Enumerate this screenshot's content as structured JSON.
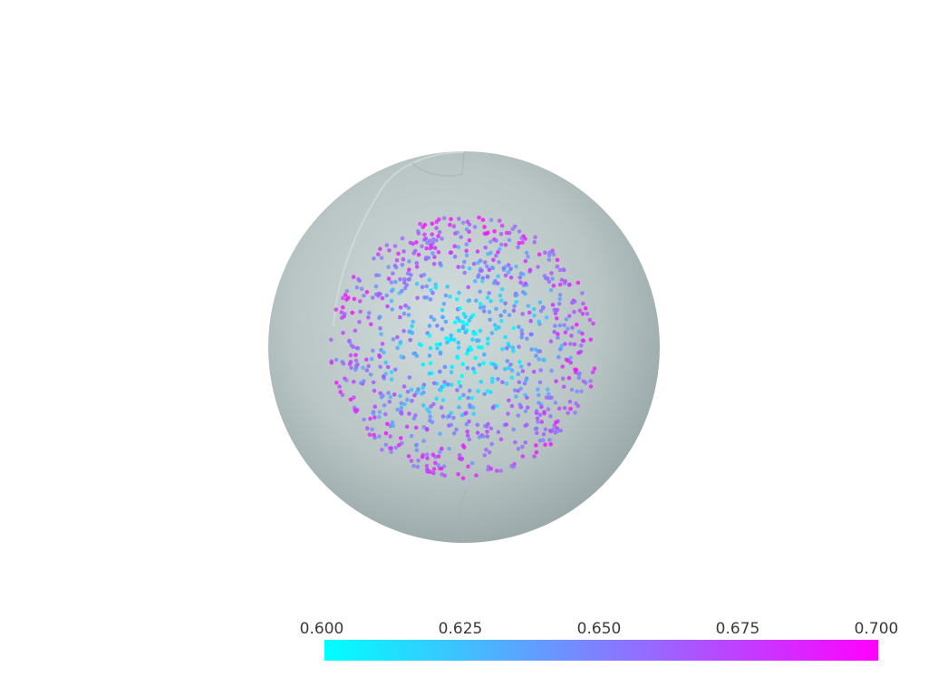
{
  "scene": {
    "background": "#ffffff",
    "sphere_color": "#b8c6c6",
    "sphere_opacity": 0.85,
    "point_count": 900,
    "color_range": [
      0.6,
      0.7
    ]
  },
  "colormap": {
    "name": "cool",
    "low_color": "#00ffff",
    "high_color": "#ff00ff"
  },
  "scalar_bar": {
    "tick_labels": [
      "0.600",
      "0.625",
      "0.650",
      "0.675",
      "0.700"
    ]
  }
}
